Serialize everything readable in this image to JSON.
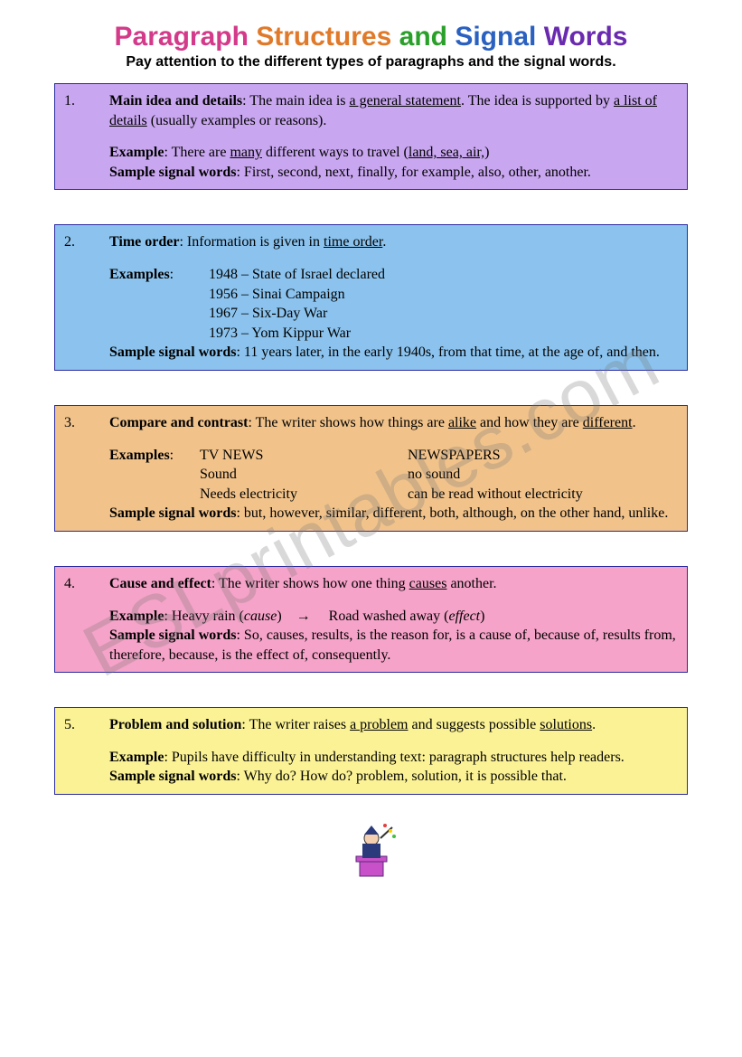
{
  "title_words": [
    {
      "t": "Paragraph",
      "c": "#d43a8a"
    },
    {
      "t": "Structures",
      "c": "#e07a2a"
    },
    {
      "t": "and",
      "c": "#2aa02a"
    },
    {
      "t": "Signal",
      "c": "#2a60c0"
    },
    {
      "t": "Words",
      "c": "#6a2ab0"
    }
  ],
  "subtitle": "Pay attention to the different types of paragraphs and the signal words.",
  "watermark": "ESLprintables.com",
  "boxes": [
    {
      "num": "1.",
      "bg": "#c9a7f0",
      "title": "Main idea and details",
      "desc_pre": ": The main idea is ",
      "u1": "a general statement",
      "desc_mid": ". The idea is supported by ",
      "u2": "a list of details",
      "desc_post": " (usually examples or reasons).",
      "example_label": "Example",
      "example_pre": ": There are ",
      "ex_u1": "many",
      "example_mid": " different ways to travel (",
      "ex_u2": "land, sea, air,",
      "example_post": ")",
      "signal_label": "Sample signal words",
      "signal": ": First, second, next, finally, for example, also, other, another."
    },
    {
      "num": "2.",
      "bg": "#8bc3ee",
      "title": "Time order",
      "desc_pre": ": Information is given in ",
      "u1": "time order",
      "desc_post": ".",
      "example_label": "Examples",
      "timeline": [
        "1948 – State of Israel declared",
        "1956 – Sinai Campaign",
        "1967 – Six-Day War",
        "1973 – Yom Kippur War"
      ],
      "signal_label": "Sample signal words",
      "signal": ": 11 years later, in the early 1940s, from that time, at the age of, and then."
    },
    {
      "num": "3.",
      "bg": "#f1c38b",
      "title": "Compare and contrast",
      "desc_pre": ": The writer shows how things are ",
      "u1": "alike",
      "desc_mid": " and how they are ",
      "u2": "different",
      "desc_post": ".",
      "example_label": "Examples",
      "compare": {
        "left_h": "TV NEWS",
        "right_h": "NEWSPAPERS",
        "rows": [
          [
            "Sound",
            "no sound"
          ],
          [
            "Needs electricity",
            "can be read without electricity"
          ]
        ]
      },
      "signal_label": "Sample signal words",
      "signal": ": but, however, similar, different, both, although, on the other hand, unlike."
    },
    {
      "num": "4.",
      "bg": "#f5a3c8",
      "title": "Cause and effect",
      "desc_pre": ": The writer shows how one thing ",
      "u1": "causes",
      "desc_post": " another.",
      "example_label": "Example",
      "ce_left": "Heavy rain",
      "ce_left_tag": "cause",
      "ce_arrow": "→",
      "ce_right": "Road washed away",
      "ce_right_tag": "effect",
      "signal_label": "Sample signal words",
      "signal": ": So, causes, results, is the reason for, is a cause of, because of, results from, therefore, because, is the effect of, consequently."
    },
    {
      "num": "5.",
      "bg": "#fbf296",
      "title": "Problem and solution",
      "desc_pre": ": The writer raises ",
      "u1": "a problem",
      "desc_mid": " and suggests possible ",
      "u2": "solutions",
      "desc_post": ".",
      "example_label": "Example",
      "example_text": ": Pupils have difficulty in understanding text: paragraph structures help readers.",
      "signal_label": "Sample signal words",
      "signal": ": Why do? How do? problem, solution, it is possible that."
    }
  ]
}
